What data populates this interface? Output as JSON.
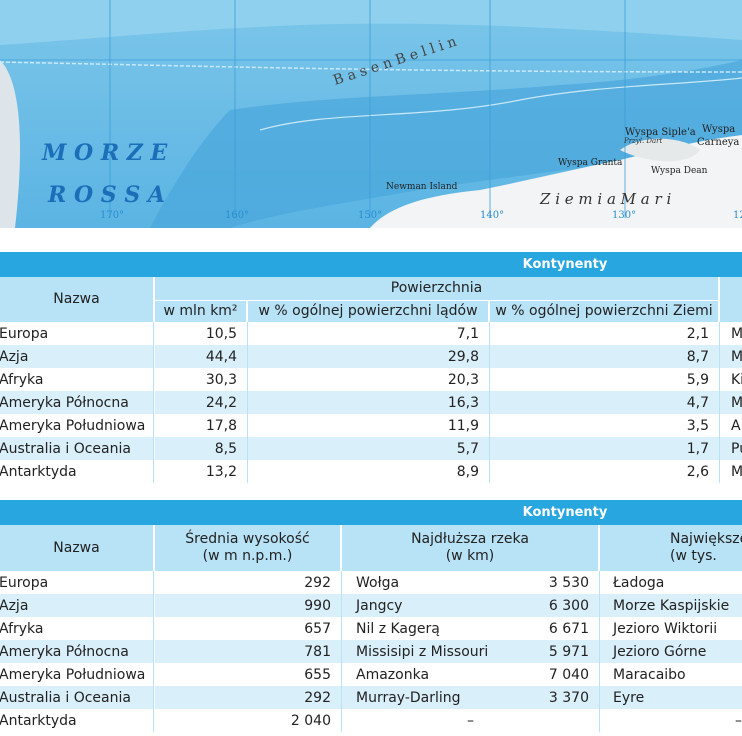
{
  "map": {
    "sea": [
      "M O R Z E",
      "R O S S A"
    ],
    "basin": "B a s e n   B e l l i n",
    "islands": {
      "newman": "Newman Island",
      "granta": "Wyspa Granta",
      "siple": "Wyspa Siple'a",
      "dart": "Przyl. Dart",
      "dean": "Wyspa Dean",
      "carney": [
        "Wyspa",
        "Carneya"
      ]
    },
    "land": "Z i e m i a   M a r i",
    "longitudes": [
      "170°",
      "160°",
      "150°",
      "140°",
      "130°",
      "12"
    ]
  },
  "table1": {
    "title": "Kontynenty",
    "header": {
      "name": "Nazwa",
      "group": "Powierzchnia",
      "cols": [
        "w mln km²",
        "w % ogólnej powierzchni lądów",
        "w % ogólnej powierzchni Ziemi"
      ]
    },
    "rows": [
      [
        "Europa",
        "10,5",
        "7,1",
        "2,1",
        "M"
      ],
      [
        "Azja",
        "44,4",
        "29,8",
        "8,7",
        "M"
      ],
      [
        "Afryka",
        "30,3",
        "20,3",
        "5,9",
        "Ki"
      ],
      [
        "Ameryka Północna",
        "24,2",
        "16,3",
        "4,7",
        "M"
      ],
      [
        "Ameryka Południowa",
        "17,8",
        "11,9",
        "3,5",
        "A"
      ],
      [
        "Australia i Oceania",
        "8,5",
        "5,7",
        "1,7",
        "Pu"
      ],
      [
        "Antarktyda",
        "13,2",
        "8,9",
        "2,6",
        "M"
      ]
    ]
  },
  "table2": {
    "title": "Kontynenty",
    "header": {
      "name": "Nazwa",
      "height": [
        "Średnia wysokość",
        "(w m n.p.m.)"
      ],
      "river": [
        "Najdłuższa rzeka",
        "(w km)"
      ],
      "lake": [
        "Największe",
        "(w tys."
      ]
    },
    "rows": [
      [
        "Europa",
        "292",
        "Wołga",
        "3 530",
        "Ładoga"
      ],
      [
        "Azja",
        "990",
        "Jangcy",
        "6 300",
        "Morze Kaspijskie"
      ],
      [
        "Afryka",
        "657",
        "Nil z Kagerą",
        "6 671",
        "Jezioro Wiktorii"
      ],
      [
        "Ameryka Północna",
        "781",
        "Missisipi z Missouri",
        "5 971",
        "Jezioro Górne"
      ],
      [
        "Ameryka Południowa",
        "655",
        "Amazonka",
        "7 040",
        "Maracaibo"
      ],
      [
        "Australia i Oceania",
        "292",
        "Murray-Darling",
        "3 370",
        "Eyre"
      ],
      [
        "Antarktyda",
        "2 040",
        "–",
        "",
        "–"
      ]
    ]
  }
}
